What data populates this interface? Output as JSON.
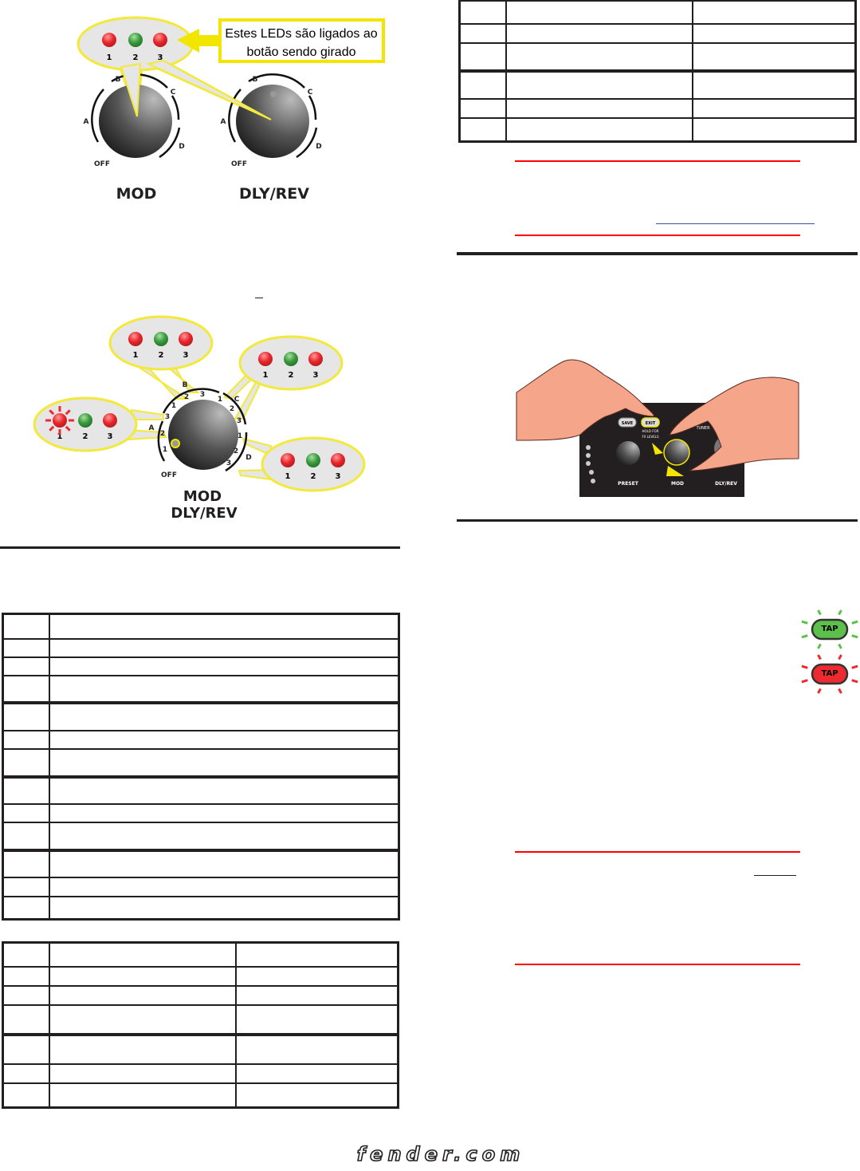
{
  "figure_knobs": {
    "callout": [
      "Estes LEDs são ligados ao",
      "botão sendo girado"
    ],
    "led_numbers": [
      "1",
      "2",
      "3"
    ],
    "positions": {
      "a": "A",
      "b": "B",
      "c": "C",
      "d": "D",
      "off": "OFF"
    },
    "knob_mod_label": "MOD",
    "knob_dly_label": "DLY/REV"
  },
  "figure_combined": {
    "led_numbers": [
      "1",
      "2",
      "3"
    ],
    "positions": {
      "a": "A",
      "b": "B",
      "c": "C",
      "d": "D",
      "off": "OFF"
    },
    "ring_numbers": [
      "1",
      "2",
      "3"
    ],
    "label_line1": "MOD",
    "label_line2": "DLY/REV"
  },
  "figure_hands": {
    "save": "SAVE",
    "exit": "EXIT",
    "hold": [
      "HOLD FOR",
      "FX LEVELS"
    ],
    "tuner": "TUNER",
    "preset": "PRESET",
    "mod": "MOD",
    "dly": "DLY/REV"
  },
  "tap_buttons": {
    "green_label": "TAP",
    "red_label": "TAP",
    "green": "#5cc04a",
    "red": "#ed2a2f"
  },
  "colors": {
    "led_red": "#e8262b",
    "led_green": "#3a9a3e",
    "bubble_border": "#f2e93a",
    "note_rule": "#ff0000"
  },
  "footer": {
    "logo": "fender.com"
  }
}
